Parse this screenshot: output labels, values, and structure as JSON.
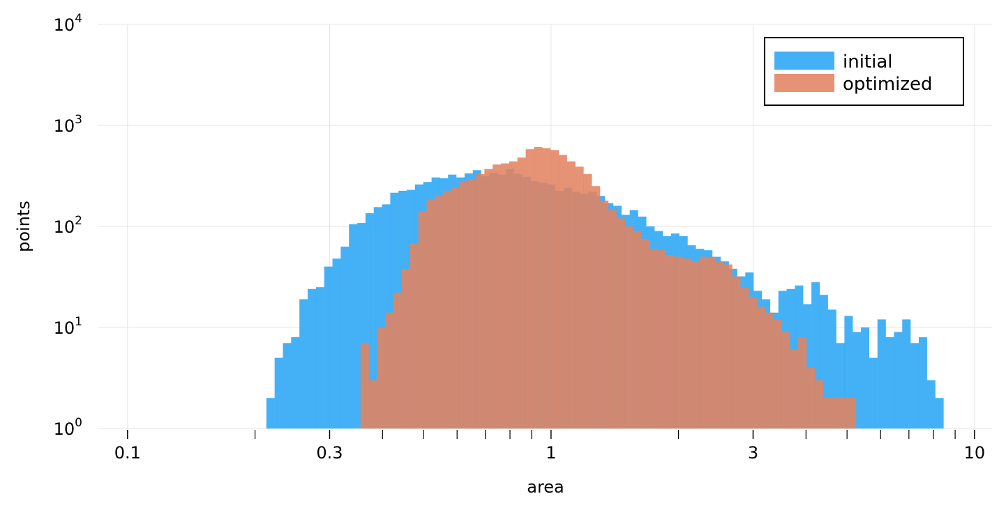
{
  "chart_data": {
    "type": "histogram",
    "xlabel": "area",
    "ylabel": "points",
    "x_scale": "log",
    "y_scale": "log",
    "xlim": [
      0.085,
      11.0
    ],
    "ylim": [
      1,
      10000
    ],
    "grid": true,
    "legend_position": "top-right",
    "bin_log_step": 0.0195,
    "x_ticks_major": [
      {
        "value": 0.1,
        "label": "0.1"
      },
      {
        "value": 0.3,
        "label": "0.3"
      },
      {
        "value": 1,
        "label": "1"
      },
      {
        "value": 3,
        "label": "3"
      },
      {
        "value": 10,
        "label": "10"
      }
    ],
    "x_ticks_minor": [
      0.2,
      0.4,
      0.5,
      0.6,
      0.7,
      0.8,
      0.9,
      2,
      4,
      5,
      6,
      7,
      8,
      9
    ],
    "y_ticks": [
      {
        "value": 1,
        "base": "10",
        "exp": "0"
      },
      {
        "value": 10,
        "base": "10",
        "exp": "1"
      },
      {
        "value": 100,
        "base": "10",
        "exp": "2"
      },
      {
        "value": 1000,
        "base": "10",
        "exp": "3"
      },
      {
        "value": 10000,
        "base": "10",
        "exp": "4"
      }
    ],
    "series": [
      {
        "name": "initial",
        "color": "#2aa6f5",
        "opacity": 0.88,
        "bin_start": 0.2128,
        "counts": [
          2,
          5,
          7,
          8,
          19,
          24,
          25,
          40,
          48,
          63,
          105,
          108,
          135,
          155,
          165,
          215,
          225,
          230,
          260,
          275,
          305,
          300,
          325,
          305,
          335,
          360,
          315,
          340,
          325,
          370,
          330,
          310,
          280,
          270,
          260,
          225,
          240,
          220,
          210,
          220,
          200,
          170,
          160,
          130,
          145,
          125,
          100,
          90,
          80,
          85,
          80,
          65,
          60,
          58,
          50,
          45,
          38,
          32,
          35,
          23,
          19,
          14,
          23,
          24,
          26,
          17,
          28,
          21,
          15,
          7,
          13,
          9,
          10,
          5,
          12,
          8,
          9,
          12,
          7,
          8,
          3,
          2
        ]
      },
      {
        "name": "optimized",
        "color": "#e28361",
        "opacity": 0.88,
        "bin_start": 0.3551,
        "counts": [
          7,
          3,
          10,
          14,
          22,
          38,
          68,
          140,
          185,
          200,
          225,
          240,
          275,
          290,
          330,
          370,
          410,
          420,
          440,
          480,
          580,
          610,
          595,
          570,
          510,
          440,
          390,
          330,
          250,
          180,
          145,
          120,
          100,
          90,
          75,
          60,
          58,
          52,
          50,
          48,
          45,
          50,
          50,
          45,
          42,
          32,
          25,
          20,
          16,
          14,
          12,
          9,
          6,
          8,
          4,
          3,
          2,
          2,
          2,
          2
        ]
      }
    ]
  }
}
